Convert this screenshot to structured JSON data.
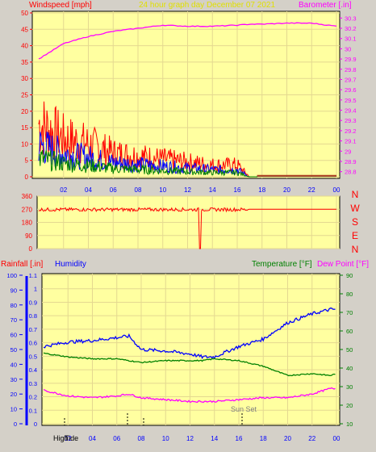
{
  "header": {
    "left_title": "Windspeed [mph]",
    "center_title": "24 hour graph day   December 07 2021",
    "right_title": "Barometer [.in]"
  },
  "colors": {
    "plot_bg": "#ffffa0",
    "frame_bg": "#d4d0c8",
    "wind": "#ff0000",
    "wind_avg": "#0000ff",
    "wind_low": "#008000",
    "barometer": "#ff00ff",
    "humidity": "#0000ff",
    "temperature": "#008000",
    "dewpoint": "#ff00ff",
    "rain": "#0000ff",
    "label_red": "#ff0000",
    "label_blue": "#0000ff",
    "label_green": "#008000",
    "label_magenta": "#ff00ff"
  },
  "x_ticks": [
    "02",
    "04",
    "06",
    "08",
    "10",
    "12",
    "14",
    "16",
    "18",
    "20",
    "22",
    "00"
  ],
  "panel1": {
    "left_ticks": [
      "0",
      "5",
      "10",
      "15",
      "20",
      "25",
      "30",
      "35",
      "40",
      "45",
      "50"
    ],
    "right_ticks": [
      "28.8",
      "28.9",
      "29",
      "29.1",
      "29.2",
      "29.3",
      "29.4",
      "29.5",
      "29.6",
      "29.7",
      "29.8",
      "29.9",
      "30",
      "30.1",
      "30.2",
      "30.3"
    ]
  },
  "panel2": {
    "left_ticks": [
      "0",
      "90",
      "180",
      "270",
      "360"
    ],
    "compass": [
      "N",
      "W",
      "S",
      "E",
      "N"
    ]
  },
  "panel3": {
    "left_label_rain": "Rainfall [.in]",
    "left_label_humidity": "Humidity",
    "right_label_temp": "Temperature [°F]",
    "right_label_dew": "Dew Point [°F]",
    "humidity_ticks": [
      "0",
      "10",
      "20",
      "30",
      "40",
      "50",
      "60",
      "70",
      "80",
      "90",
      "100"
    ],
    "rain_ticks": [
      "0",
      "0.1",
      "0.2",
      "0.3",
      "0.4",
      "0.5",
      "0.6",
      "0.7",
      "0.8",
      "0.9",
      "1",
      "1.1"
    ],
    "temp_ticks": [
      "10",
      "20",
      "30",
      "40",
      "50",
      "60",
      "70",
      "80",
      "90"
    ],
    "sunset_label": "Sun Set",
    "bottom_labels": [
      "High",
      "Tide"
    ]
  },
  "chart_data": [
    {
      "type": "line",
      "name": "windspeed-barometer",
      "x_hours": [
        0,
        2,
        4,
        6,
        8,
        10,
        12,
        14,
        16,
        17,
        18,
        20,
        22,
        24
      ],
      "series": [
        {
          "name": "Barometer [.in]",
          "axis": "right",
          "values": [
            29.9,
            30.05,
            30.12,
            30.17,
            30.2,
            30.23,
            30.22,
            30.22,
            30.23,
            30.24,
            30.24,
            30.25,
            30.25,
            30.22
          ]
        },
        {
          "name": "Windspeed [mph]",
          "axis": "left",
          "values": [
            18,
            13,
            11,
            8,
            7,
            6,
            5,
            4,
            4,
            0,
            0,
            0,
            0,
            0
          ]
        }
      ],
      "ylim_left": [
        0,
        50
      ],
      "ylim_right": [
        28.75,
        30.35
      ]
    },
    {
      "type": "line",
      "name": "wind-direction",
      "x_hours": [
        0,
        2,
        4,
        6,
        8,
        10,
        12,
        13,
        14,
        16,
        17,
        18,
        20,
        22,
        24
      ],
      "series": [
        {
          "name": "Direction",
          "values": [
            270,
            265,
            268,
            262,
            265,
            268,
            270,
            0,
            268,
            262,
            270,
            270,
            270,
            270,
            270
          ]
        }
      ],
      "ylim": [
        0,
        360
      ]
    },
    {
      "type": "line",
      "name": "humidity-temperature",
      "x_hours": [
        0,
        2,
        4,
        6,
        7,
        8,
        10,
        12,
        13,
        14,
        16,
        18,
        20,
        22,
        23.5,
        24
      ],
      "series": [
        {
          "name": "Humidity",
          "axis": "humidity",
          "values": [
            52,
            55,
            56,
            58,
            59,
            50,
            49,
            47,
            45,
            45,
            52,
            57,
            68,
            74,
            77,
            77
          ]
        },
        {
          "name": "Temperature [°F]",
          "axis": "temp",
          "values": [
            48,
            46,
            45,
            45,
            44,
            43,
            44,
            44,
            44,
            45,
            44,
            41,
            36,
            37,
            36,
            37
          ]
        },
        {
          "name": "Dew Point [°F]",
          "axis": "temp",
          "values": [
            28,
            25,
            24,
            25,
            26,
            24,
            23,
            22,
            22,
            22,
            23,
            24,
            24,
            26,
            29,
            29
          ]
        }
      ],
      "ylim_humidity": [
        0,
        100
      ],
      "ylim_rain": [
        0,
        1.1
      ],
      "ylim_temp": [
        10,
        90
      ]
    }
  ]
}
